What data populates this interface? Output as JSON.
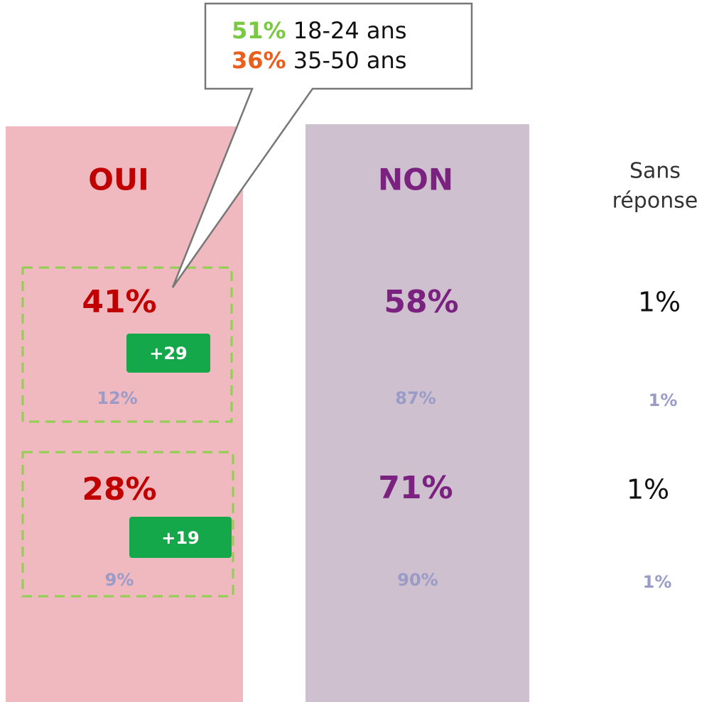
{
  "callout": {
    "lines": [
      {
        "value": "51%",
        "label": "18-24 ans"
      },
      {
        "value": "36%",
        "label": "35-50 ans"
      }
    ]
  },
  "columns": [
    {
      "header": [
        "OUI"
      ]
    },
    {
      "header": [
        "NON"
      ]
    },
    {
      "header": [
        "Sans",
        "réponse"
      ]
    }
  ],
  "rows": [
    {
      "main": [
        "41%",
        "58%",
        "1%"
      ],
      "sub": [
        "12%",
        "87%",
        "1%"
      ],
      "badge": "+29"
    },
    {
      "main": [
        "28%",
        "71%",
        "1%"
      ],
      "sub": [
        "9%",
        "90%",
        "1%"
      ],
      "badge": "+19"
    }
  ]
}
